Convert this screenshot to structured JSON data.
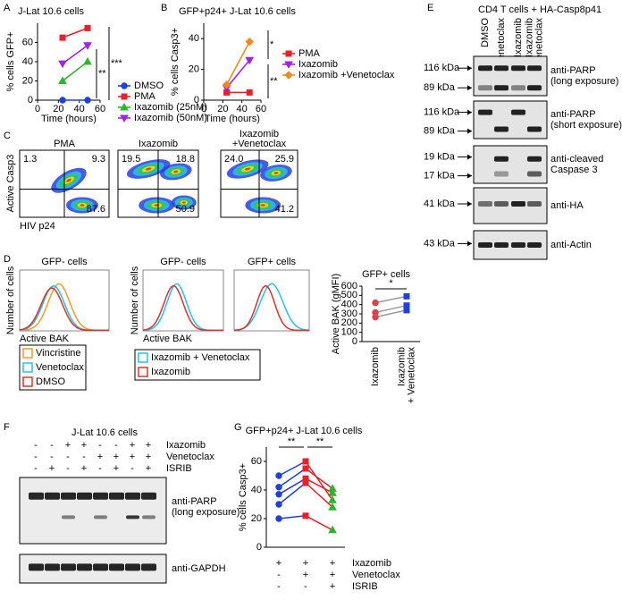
{
  "panel_labels": [
    "A",
    "B",
    "C",
    "D",
    "E",
    "F",
    "G"
  ],
  "chart_data": [
    {
      "type": "line",
      "title": "J-Lat 10.6 cells",
      "y_label": "% cells GFP+",
      "x_label": "Time (hours)",
      "x": [
        24,
        48
      ],
      "xlim": [
        0,
        60
      ],
      "xticks": [
        0,
        20,
        40,
        60
      ],
      "ylim": [
        0,
        80
      ],
      "yticks": [
        0,
        20,
        40,
        60
      ],
      "series": [
        {
          "name": "DMSO",
          "color": "#1f3fe0",
          "marker": "circle",
          "values": [
            0,
            0
          ]
        },
        {
          "name": "PMA",
          "color": "#e8202a",
          "marker": "square",
          "values": [
            65,
            75
          ]
        },
        {
          "name": "Ixazomib (25nM)",
          "color": "#2cb52c",
          "marker": "triangle",
          "values": [
            20,
            40
          ]
        },
        {
          "name": "Ixazomib (50nM)",
          "color": "#a020f0",
          "marker": "triangle-down",
          "values": [
            38,
            57
          ]
        }
      ],
      "annotations": [
        "***",
        "**"
      ]
    },
    {
      "type": "line",
      "title": "GFP+p24+ J-Lat 10.6 cells",
      "y_label": "% cells Casp3+",
      "x_label": "Time (hours)",
      "x": [
        24,
        48
      ],
      "xlim": [
        0,
        60
      ],
      "xticks": [
        0,
        20,
        40,
        60
      ],
      "ylim": [
        0,
        50
      ],
      "yticks": [
        0,
        20,
        40
      ],
      "series": [
        {
          "name": "PMA",
          "color": "#e8202a",
          "marker": "square",
          "values": [
            5,
            5
          ]
        },
        {
          "name": "Ixazomib",
          "color": "#a020f0",
          "marker": "triangle-down",
          "values": [
            8,
            26
          ]
        },
        {
          "name": "Ixazomib +Venetoclax",
          "color": "#f08a1c",
          "marker": "diamond",
          "values": [
            10,
            38
          ]
        }
      ],
      "annotations": [
        "*",
        "**"
      ]
    },
    {
      "type": "paired",
      "title": "GFP+ cells",
      "y_label": "Active BAK (gMFI)",
      "categories": [
        [
          "Ixazomib"
        ],
        [
          "Ixazomib",
          "+ Venetoclax"
        ]
      ],
      "ylim": [
        0,
        600
      ],
      "yticks": [
        0,
        100,
        200,
        300,
        400,
        500,
        600
      ],
      "category_colors": [
        "#e0404a",
        "#1f3fe0"
      ],
      "markers": [
        "circle",
        "square"
      ],
      "line_color": "#999999",
      "series": [
        {
          "values": [
            265,
            340
          ]
        },
        {
          "values": [
            315,
            390
          ]
        },
        {
          "values": [
            420,
            490
          ]
        }
      ],
      "annotations": [
        "*"
      ]
    },
    {
      "type": "paired",
      "title": "GFP+p24+ J-Lat 10.6 cells",
      "y_label": "% cells Casp3+",
      "ylim": [
        0,
        70
      ],
      "yticks": [
        0,
        20,
        40,
        60
      ],
      "category_colors": [
        "#1f3fe0",
        "#e8202a",
        "#2cb52c"
      ],
      "markers": [
        "circle",
        "square",
        "triangle"
      ],
      "series": [
        {
          "values": [
            20,
            22,
            12
          ]
        },
        {
          "values": [
            30,
            45,
            28
          ]
        },
        {
          "values": [
            37,
            48,
            38
          ]
        },
        {
          "values": [
            42,
            55,
            41
          ]
        },
        {
          "values": [
            50,
            60,
            33
          ]
        }
      ],
      "conditions": [
        {
          "name": "Ixazomib",
          "signs": [
            "+",
            "+",
            "+"
          ]
        },
        {
          "name": "Venetoclax",
          "signs": [
            "-",
            "+",
            "+"
          ]
        },
        {
          "name": "ISRIB",
          "signs": [
            "-",
            "-",
            "+"
          ]
        }
      ],
      "annotations": [
        "**",
        "**"
      ]
    }
  ],
  "flow": {
    "y_label": "Active Casp3",
    "x_label": "HIV p24",
    "plots": [
      {
        "title": [
          "PMA"
        ],
        "quadrants": [
          "1.3",
          "9.3",
          "87.6"
        ]
      },
      {
        "title": [
          "Ixazomib"
        ],
        "quadrants": [
          "19.5",
          "18.8",
          "50.9"
        ]
      },
      {
        "title": [
          "Ixazomib",
          "+Venetoclax"
        ],
        "quadrants": [
          "24.0",
          "25.9",
          "41.2"
        ]
      }
    ]
  },
  "histograms": {
    "y_label": "Number of cells",
    "x_label": "Active BAK",
    "titles": [
      "GFP- cells",
      "GFP- cells",
      "GFP+ cells"
    ],
    "legends": [
      [
        {
          "name": "Vincristine",
          "color": "#f39a2a"
        },
        {
          "name": "Venetoclax",
          "color": "#22c3e6"
        },
        {
          "name": "DMSO",
          "color": "#e0302a"
        }
      ],
      [
        {
          "name": "Ixazomib + Venetoclax",
          "color": "#22c3e6"
        },
        {
          "name": "Ixazomib",
          "color": "#e0302a"
        }
      ]
    ]
  },
  "blot_e": {
    "title": "CD4 T cells + HA-Casp8p41",
    "lanes": [
      [
        "DMSO"
      ],
      [
        "Venetoclax"
      ],
      [
        "Ixazomib"
      ],
      [
        "Ixazomib",
        "+ Venetoclax"
      ]
    ],
    "panels": [
      {
        "markers": [
          "116 kDa",
          "89 kDa"
        ],
        "label": [
          "anti-PARP",
          "(long exposure)"
        ]
      },
      {
        "markers": [
          "116 kDa",
          "89 kDa"
        ],
        "label": [
          "anti-PARP",
          "(short exposure)"
        ]
      },
      {
        "markers": [
          "19 kDa",
          "17 kDa"
        ],
        "label": [
          "anti-cleaved",
          "Caspase 3"
        ]
      },
      {
        "markers": [
          "41 kDa"
        ],
        "label": [
          "anti-HA"
        ]
      },
      {
        "markers": [
          "43 kDa"
        ],
        "label": [
          "anti-Actin"
        ]
      }
    ]
  },
  "blot_f": {
    "title": "J-Lat 10.6 cells",
    "conditions": [
      {
        "name": "Ixazomib",
        "signs": [
          "-",
          "-",
          "+",
          "+",
          "-",
          "-",
          "+",
          "+"
        ]
      },
      {
        "name": "Venetoclax",
        "signs": [
          "-",
          "-",
          "-",
          "-",
          "+",
          "+",
          "+",
          "+"
        ]
      },
      {
        "name": "ISRIB",
        "signs": [
          "-",
          "+",
          "-",
          "+",
          "-",
          "+",
          "-",
          "+"
        ]
      }
    ],
    "panels": [
      {
        "label": [
          "anti-PARP",
          "(long exposure)"
        ]
      },
      {
        "label": [
          "anti-GAPDH"
        ]
      }
    ]
  }
}
